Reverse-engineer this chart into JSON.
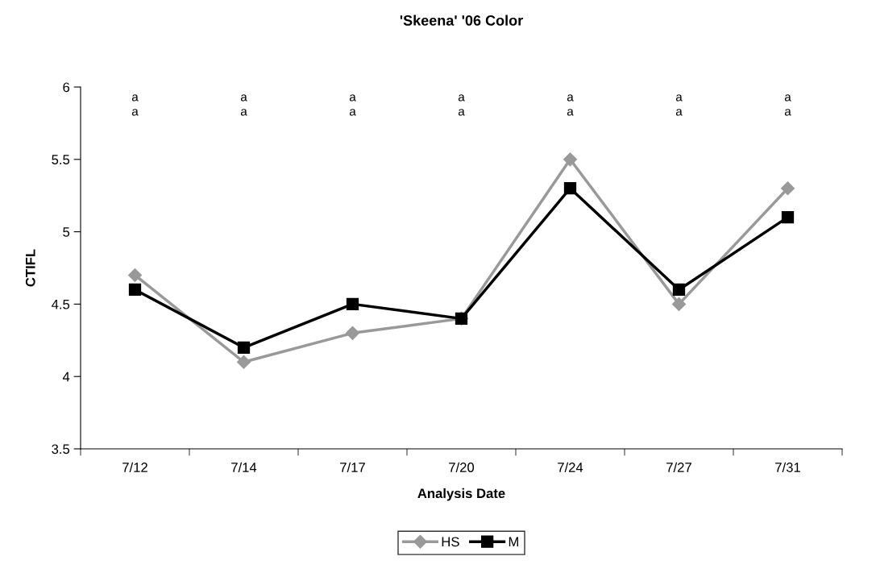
{
  "chart_data": {
    "type": "line",
    "title": "'Skeena' '06 Color",
    "xlabel": "Analysis Date",
    "ylabel": "CTIFL",
    "categories": [
      "7/12",
      "7/14",
      "7/17",
      "7/20",
      "7/24",
      "7/27",
      "7/31"
    ],
    "series": [
      {
        "name": "HS",
        "color": "#999999",
        "marker": "diamond",
        "values": [
          4.7,
          4.1,
          4.3,
          4.4,
          5.5,
          4.5,
          5.3
        ]
      },
      {
        "name": "M",
        "color": "#000000",
        "marker": "square",
        "values": [
          4.6,
          4.2,
          4.5,
          4.4,
          5.3,
          4.6,
          5.1
        ]
      }
    ],
    "ylim": [
      3.5,
      6
    ],
    "yticks": [
      3.5,
      4,
      4.5,
      5,
      5.5,
      6
    ],
    "grid": false,
    "legend": "bottom",
    "line_style": "solid",
    "annotations": [
      "a",
      "a",
      "a",
      "a",
      "a",
      "a",
      "a",
      "a",
      "a",
      "a",
      "a",
      "a",
      "a",
      "a"
    ]
  }
}
